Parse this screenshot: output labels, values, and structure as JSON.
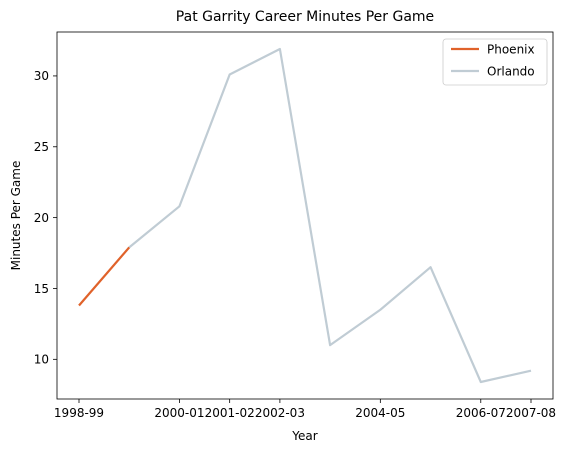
{
  "chart_data": {
    "type": "line",
    "title": "Pat Garrity Career Minutes Per Game",
    "xlabel": "Year",
    "ylabel": "Minutes Per Game",
    "x_tick_labels": [
      "1998-99",
      "2000-01",
      "2001-02",
      "2002-03",
      "2004-05",
      "2006-07",
      "2007-08"
    ],
    "y_ticks": [
      10,
      15,
      20,
      25,
      30
    ],
    "ylim": [
      7.2,
      33.1
    ],
    "grid": false,
    "legend_position": "top-right",
    "series": [
      {
        "name": "Phoenix",
        "color": "#e0622a",
        "points": [
          {
            "x": "1998-99",
            "y": 13.8
          },
          {
            "x": "1999-00",
            "y": 17.9
          }
        ]
      },
      {
        "name": "Orlando",
        "color": "#c0ccd4",
        "points": [
          {
            "x": "1999-00",
            "y": 17.9
          },
          {
            "x": "2000-01",
            "y": 20.8
          },
          {
            "x": "2001-02",
            "y": 30.1
          },
          {
            "x": "2002-03",
            "y": 31.9
          },
          {
            "x": "2003-04",
            "y": 11.0
          },
          {
            "x": "2004-05",
            "y": 13.5
          },
          {
            "x": "2005-06",
            "y": 16.5
          },
          {
            "x": "2006-07",
            "y": 8.4
          },
          {
            "x": "2007-08",
            "y": 9.2
          }
        ]
      }
    ]
  }
}
